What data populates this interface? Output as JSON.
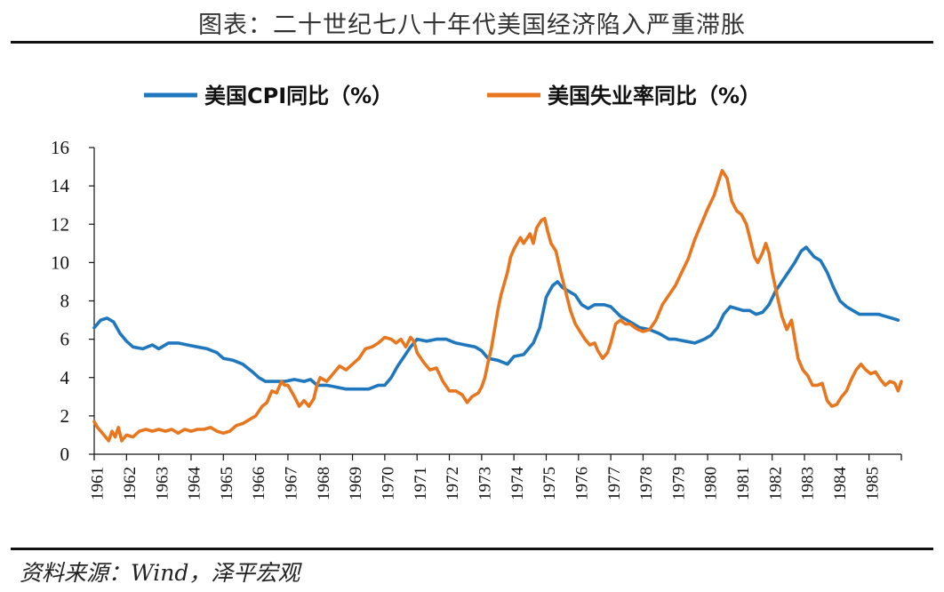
{
  "header": {
    "title": "图表：二十世纪七八十年代美国经济陷入严重滞胀"
  },
  "footer": {
    "source": "资料来源：Wind，泽平宏观"
  },
  "colors": {
    "cpi": "#1f77bd",
    "unemployment": "#e8761e",
    "axis": "#111111"
  },
  "chart_data": {
    "type": "line",
    "title": "图表：二十世纪七八十年代美国经济陷入严重滞胀",
    "xlabel": "",
    "ylabel": "",
    "ylim": [
      0,
      16
    ],
    "yticks": [
      0,
      2,
      4,
      6,
      8,
      10,
      12,
      14,
      16
    ],
    "xlim": [
      1961.0,
      1986.0
    ],
    "xticks": [
      "1961",
      "1962",
      "1963",
      "1964",
      "1965",
      "1966",
      "1967",
      "1968",
      "1969",
      "1970",
      "1971",
      "1972",
      "1973",
      "1974",
      "1975",
      "1976",
      "1977",
      "1978",
      "1979",
      "1980",
      "1981",
      "1982",
      "1983",
      "1984",
      "1985"
    ],
    "legend_position": "top",
    "series": [
      {
        "name": "美国CPI同比（%）",
        "color": "#1f77bd",
        "points": [
          [
            1961.0,
            6.6
          ],
          [
            1961.2,
            7.0
          ],
          [
            1961.4,
            7.1
          ],
          [
            1961.6,
            6.9
          ],
          [
            1961.8,
            6.3
          ],
          [
            1962.0,
            5.9
          ],
          [
            1962.2,
            5.6
          ],
          [
            1962.5,
            5.5
          ],
          [
            1962.8,
            5.7
          ],
          [
            1963.0,
            5.5
          ],
          [
            1963.3,
            5.8
          ],
          [
            1963.6,
            5.8
          ],
          [
            1963.9,
            5.7
          ],
          [
            1964.2,
            5.6
          ],
          [
            1964.5,
            5.5
          ],
          [
            1964.8,
            5.3
          ],
          [
            1965.0,
            5.0
          ],
          [
            1965.3,
            4.9
          ],
          [
            1965.6,
            4.7
          ],
          [
            1965.9,
            4.3
          ],
          [
            1966.1,
            4.0
          ],
          [
            1966.3,
            3.8
          ],
          [
            1966.6,
            3.8
          ],
          [
            1966.9,
            3.8
          ],
          [
            1967.2,
            3.9
          ],
          [
            1967.5,
            3.8
          ],
          [
            1967.7,
            3.9
          ],
          [
            1967.9,
            3.6
          ],
          [
            1968.2,
            3.6
          ],
          [
            1968.5,
            3.5
          ],
          [
            1968.8,
            3.4
          ],
          [
            1969.2,
            3.4
          ],
          [
            1969.5,
            3.4
          ],
          [
            1969.8,
            3.6
          ],
          [
            1970.0,
            3.6
          ],
          [
            1970.2,
            4.0
          ],
          [
            1970.4,
            4.6
          ],
          [
            1970.6,
            5.1
          ],
          [
            1970.8,
            5.6
          ],
          [
            1971.0,
            6.0
          ],
          [
            1971.3,
            5.9
          ],
          [
            1971.6,
            6.0
          ],
          [
            1971.9,
            6.0
          ],
          [
            1972.2,
            5.8
          ],
          [
            1972.5,
            5.7
          ],
          [
            1972.8,
            5.6
          ],
          [
            1973.0,
            5.4
          ],
          [
            1973.2,
            5.0
          ],
          [
            1973.5,
            4.9
          ],
          [
            1973.8,
            4.7
          ],
          [
            1974.0,
            5.1
          ],
          [
            1974.3,
            5.2
          ],
          [
            1974.6,
            5.8
          ],
          [
            1974.8,
            6.6
          ],
          [
            1975.0,
            8.2
          ],
          [
            1975.2,
            8.8
          ],
          [
            1975.35,
            9.0
          ],
          [
            1975.5,
            8.7
          ],
          [
            1975.7,
            8.5
          ],
          [
            1975.9,
            8.3
          ],
          [
            1976.1,
            7.8
          ],
          [
            1976.3,
            7.6
          ],
          [
            1976.5,
            7.8
          ],
          [
            1976.8,
            7.8
          ],
          [
            1977.0,
            7.7
          ],
          [
            1977.3,
            7.2
          ],
          [
            1977.6,
            6.9
          ],
          [
            1977.9,
            6.6
          ],
          [
            1978.2,
            6.5
          ],
          [
            1978.5,
            6.3
          ],
          [
            1978.8,
            6.0
          ],
          [
            1979.0,
            6.0
          ],
          [
            1979.3,
            5.9
          ],
          [
            1979.6,
            5.8
          ],
          [
            1979.9,
            6.0
          ],
          [
            1980.1,
            6.2
          ],
          [
            1980.3,
            6.6
          ],
          [
            1980.5,
            7.3
          ],
          [
            1980.7,
            7.7
          ],
          [
            1980.9,
            7.6
          ],
          [
            1981.1,
            7.5
          ],
          [
            1981.3,
            7.5
          ],
          [
            1981.5,
            7.3
          ],
          [
            1981.7,
            7.4
          ],
          [
            1981.9,
            7.8
          ],
          [
            1982.1,
            8.5
          ],
          [
            1982.3,
            9.0
          ],
          [
            1982.5,
            9.5
          ],
          [
            1982.7,
            10.0
          ],
          [
            1982.9,
            10.6
          ],
          [
            1983.05,
            10.8
          ],
          [
            1983.3,
            10.3
          ],
          [
            1983.5,
            10.1
          ],
          [
            1983.7,
            9.5
          ],
          [
            1983.9,
            8.7
          ],
          [
            1984.1,
            8.0
          ],
          [
            1984.3,
            7.7
          ],
          [
            1984.5,
            7.5
          ],
          [
            1984.7,
            7.3
          ],
          [
            1984.9,
            7.3
          ],
          [
            1985.1,
            7.3
          ],
          [
            1985.3,
            7.3
          ],
          [
            1985.5,
            7.2
          ],
          [
            1985.7,
            7.1
          ],
          [
            1985.9,
            7.0
          ]
        ]
      },
      {
        "name": "美国失业率同比（%）",
        "color": "#e8761e",
        "points": [
          [
            1961.0,
            1.7
          ],
          [
            1961.1,
            1.4
          ],
          [
            1961.2,
            1.2
          ],
          [
            1961.3,
            1.0
          ],
          [
            1961.45,
            0.7
          ],
          [
            1961.55,
            1.2
          ],
          [
            1961.65,
            0.9
          ],
          [
            1961.75,
            1.4
          ],
          [
            1961.85,
            0.7
          ],
          [
            1962.0,
            1.0
          ],
          [
            1962.2,
            0.9
          ],
          [
            1962.4,
            1.2
          ],
          [
            1962.6,
            1.3
          ],
          [
            1962.8,
            1.2
          ],
          [
            1963.0,
            1.3
          ],
          [
            1963.2,
            1.2
          ],
          [
            1963.4,
            1.3
          ],
          [
            1963.6,
            1.1
          ],
          [
            1963.8,
            1.3
          ],
          [
            1964.0,
            1.2
          ],
          [
            1964.2,
            1.3
          ],
          [
            1964.4,
            1.3
          ],
          [
            1964.6,
            1.4
          ],
          [
            1964.8,
            1.2
          ],
          [
            1965.0,
            1.1
          ],
          [
            1965.2,
            1.2
          ],
          [
            1965.4,
            1.5
          ],
          [
            1965.6,
            1.6
          ],
          [
            1965.8,
            1.8
          ],
          [
            1966.0,
            2.0
          ],
          [
            1966.2,
            2.5
          ],
          [
            1966.35,
            2.7
          ],
          [
            1966.5,
            3.3
          ],
          [
            1966.65,
            3.2
          ],
          [
            1966.8,
            3.8
          ],
          [
            1966.9,
            3.6
          ],
          [
            1967.0,
            3.6
          ],
          [
            1967.2,
            3.0
          ],
          [
            1967.35,
            2.5
          ],
          [
            1967.5,
            2.8
          ],
          [
            1967.65,
            2.5
          ],
          [
            1967.8,
            2.9
          ],
          [
            1967.9,
            3.6
          ],
          [
            1968.0,
            4.0
          ],
          [
            1968.2,
            3.8
          ],
          [
            1968.4,
            4.2
          ],
          [
            1968.6,
            4.6
          ],
          [
            1968.8,
            4.4
          ],
          [
            1969.0,
            4.7
          ],
          [
            1969.2,
            5.0
          ],
          [
            1969.4,
            5.5
          ],
          [
            1969.6,
            5.6
          ],
          [
            1969.8,
            5.8
          ],
          [
            1970.0,
            6.1
          ],
          [
            1970.2,
            6.0
          ],
          [
            1970.35,
            5.8
          ],
          [
            1970.5,
            6.0
          ],
          [
            1970.65,
            5.6
          ],
          [
            1970.8,
            6.1
          ],
          [
            1970.9,
            5.9
          ],
          [
            1971.0,
            5.3
          ],
          [
            1971.2,
            4.8
          ],
          [
            1971.4,
            4.4
          ],
          [
            1971.6,
            4.5
          ],
          [
            1971.8,
            3.8
          ],
          [
            1972.0,
            3.3
          ],
          [
            1972.2,
            3.3
          ],
          [
            1972.4,
            3.1
          ],
          [
            1972.55,
            2.7
          ],
          [
            1972.7,
            3.0
          ],
          [
            1972.9,
            3.2
          ],
          [
            1973.0,
            3.5
          ],
          [
            1973.1,
            4.0
          ],
          [
            1973.2,
            4.8
          ],
          [
            1973.3,
            5.5
          ],
          [
            1973.4,
            6.5
          ],
          [
            1973.5,
            7.5
          ],
          [
            1973.6,
            8.3
          ],
          [
            1973.8,
            9.5
          ],
          [
            1973.9,
            10.3
          ],
          [
            1974.0,
            10.7
          ],
          [
            1974.2,
            11.3
          ],
          [
            1974.3,
            11.0
          ],
          [
            1974.5,
            11.5
          ],
          [
            1974.6,
            11.0
          ],
          [
            1974.7,
            11.8
          ],
          [
            1974.85,
            12.2
          ],
          [
            1974.95,
            12.3
          ],
          [
            1975.05,
            11.6
          ],
          [
            1975.15,
            11.0
          ],
          [
            1975.3,
            10.6
          ],
          [
            1975.45,
            9.5
          ],
          [
            1975.6,
            8.5
          ],
          [
            1975.75,
            7.5
          ],
          [
            1975.9,
            6.8
          ],
          [
            1976.05,
            6.4
          ],
          [
            1976.2,
            6.0
          ],
          [
            1976.35,
            5.7
          ],
          [
            1976.5,
            5.8
          ],
          [
            1976.6,
            5.4
          ],
          [
            1976.75,
            5.0
          ],
          [
            1976.9,
            5.3
          ],
          [
            1977.0,
            5.8
          ],
          [
            1977.15,
            6.8
          ],
          [
            1977.3,
            7.0
          ],
          [
            1977.45,
            6.8
          ],
          [
            1977.6,
            6.8
          ],
          [
            1977.75,
            6.6
          ],
          [
            1977.85,
            6.5
          ],
          [
            1978.0,
            6.4
          ],
          [
            1978.2,
            6.5
          ],
          [
            1978.4,
            7.0
          ],
          [
            1978.6,
            7.8
          ],
          [
            1978.8,
            8.3
          ],
          [
            1979.0,
            8.8
          ],
          [
            1979.2,
            9.5
          ],
          [
            1979.4,
            10.2
          ],
          [
            1979.6,
            11.2
          ],
          [
            1979.8,
            12.0
          ],
          [
            1980.0,
            12.8
          ],
          [
            1980.2,
            13.5
          ],
          [
            1980.35,
            14.3
          ],
          [
            1980.45,
            14.8
          ],
          [
            1980.6,
            14.4
          ],
          [
            1980.75,
            13.2
          ],
          [
            1980.9,
            12.7
          ],
          [
            1981.05,
            12.5
          ],
          [
            1981.2,
            12.0
          ],
          [
            1981.35,
            11.0
          ],
          [
            1981.45,
            10.3
          ],
          [
            1981.55,
            10.0
          ],
          [
            1981.7,
            10.5
          ],
          [
            1981.8,
            11.0
          ],
          [
            1981.9,
            10.5
          ],
          [
            1982.0,
            9.5
          ],
          [
            1982.15,
            8.3
          ],
          [
            1982.3,
            7.2
          ],
          [
            1982.45,
            6.5
          ],
          [
            1982.6,
            7.0
          ],
          [
            1982.7,
            6.0
          ],
          [
            1982.8,
            5.0
          ],
          [
            1982.95,
            4.4
          ],
          [
            1983.1,
            4.1
          ],
          [
            1983.25,
            3.6
          ],
          [
            1983.4,
            3.6
          ],
          [
            1983.55,
            3.7
          ],
          [
            1983.7,
            2.8
          ],
          [
            1983.85,
            2.5
          ],
          [
            1984.0,
            2.6
          ],
          [
            1984.15,
            3.0
          ],
          [
            1984.3,
            3.3
          ],
          [
            1984.45,
            3.9
          ],
          [
            1984.6,
            4.4
          ],
          [
            1984.75,
            4.7
          ],
          [
            1984.9,
            4.4
          ],
          [
            1985.05,
            4.2
          ],
          [
            1985.2,
            4.3
          ],
          [
            1985.35,
            3.9
          ],
          [
            1985.5,
            3.6
          ],
          [
            1985.65,
            3.8
          ],
          [
            1985.8,
            3.7
          ],
          [
            1985.9,
            3.3
          ],
          [
            1986.0,
            3.8
          ]
        ]
      }
    ]
  }
}
